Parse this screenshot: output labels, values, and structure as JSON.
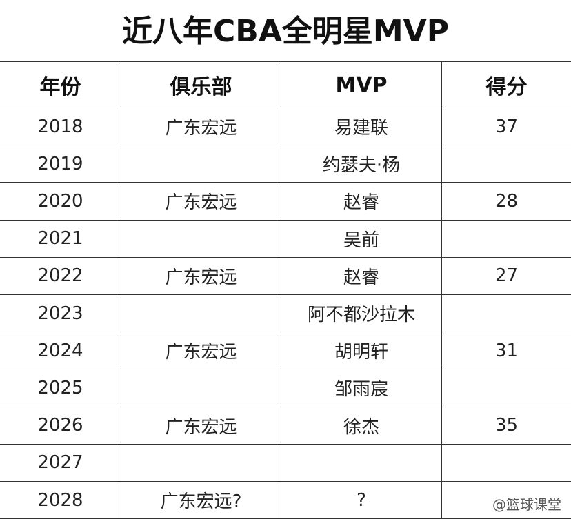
{
  "title": "近八年CBA全明星MVP",
  "table": {
    "headers": [
      "年份",
      "俱乐部",
      "MVP",
      "得分"
    ],
    "rows": [
      [
        "2018",
        "广东宏远",
        "易建联",
        "37"
      ],
      [
        "2019",
        null,
        "约瑟夫·杨",
        null
      ],
      [
        "2020",
        "广东宏远",
        "赵睿",
        "28"
      ],
      [
        "2021",
        null,
        "吴前",
        null
      ],
      [
        "2022",
        "广东宏远",
        "赵睿",
        "27"
      ],
      [
        "2023",
        null,
        "阿不都沙拉木",
        null
      ],
      [
        "2024",
        "广东宏远",
        "胡明轩",
        "31"
      ],
      [
        "2025",
        null,
        "邹雨宸",
        null
      ],
      [
        "2026",
        "广东宏远",
        "徐杰",
        "35"
      ],
      [
        "2027",
        null,
        null,
        null
      ],
      [
        "2028",
        "广东宏远?",
        "?",
        null
      ]
    ]
  },
  "watermark": "@篮球课堂"
}
